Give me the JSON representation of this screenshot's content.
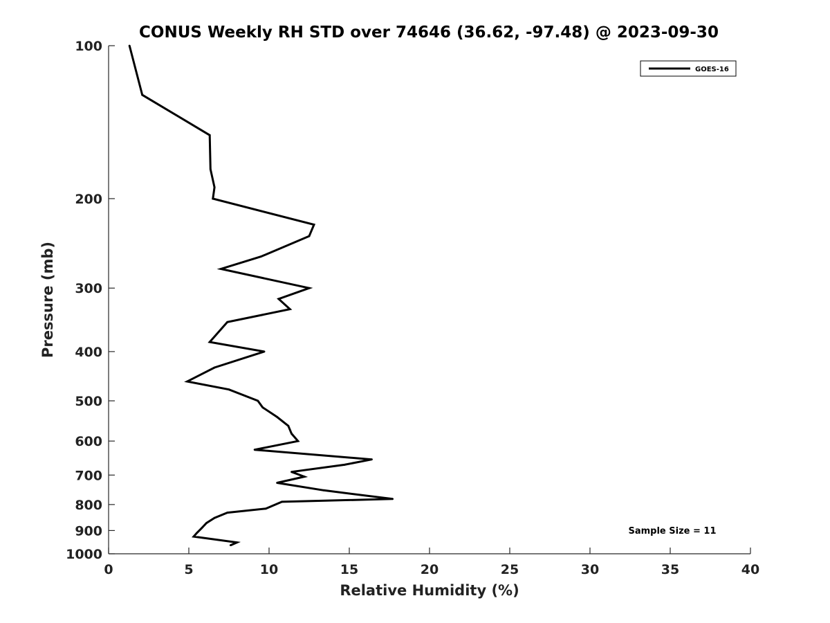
{
  "chart_data": {
    "type": "line",
    "title": "CONUS Weekly RH STD over 74646 (36.62, -97.48) @ 2023-09-30",
    "xlabel": "Relative Humidity (%)",
    "ylabel": "Pressure (mb)",
    "xlim": [
      0,
      40
    ],
    "ylim": [
      100,
      1000
    ],
    "y_scale": "log",
    "y_direction": "reversed",
    "x_ticks": [
      "0",
      "5",
      "10",
      "15",
      "20",
      "25",
      "30",
      "35",
      "40"
    ],
    "y_ticks": [
      "100",
      "200",
      "300",
      "400",
      "500",
      "600",
      "700",
      "800",
      "900",
      "1000"
    ],
    "grid": false,
    "legend": {
      "placement": "top-right",
      "entries": [
        "GOES-16"
      ]
    },
    "annotations": [
      "Sample Size = 11"
    ],
    "series": [
      {
        "name": "GOES-16",
        "color": "#000000",
        "points": [
          [
            1.3,
            100
          ],
          [
            2.1,
            125
          ],
          [
            6.3,
            150
          ],
          [
            6.35,
            175
          ],
          [
            6.6,
            190
          ],
          [
            6.5,
            200
          ],
          [
            12.8,
            225
          ],
          [
            12.5,
            237
          ],
          [
            9.5,
            260
          ],
          [
            7.0,
            275
          ],
          [
            12.5,
            300
          ],
          [
            10.6,
            315
          ],
          [
            11.3,
            330
          ],
          [
            7.4,
            350
          ],
          [
            6.3,
            383
          ],
          [
            9.7,
            400
          ],
          [
            6.6,
            430
          ],
          [
            4.9,
            458
          ],
          [
            7.5,
            475
          ],
          [
            9.3,
            500
          ],
          [
            9.6,
            515
          ],
          [
            10.5,
            538
          ],
          [
            11.2,
            560
          ],
          [
            11.4,
            580
          ],
          [
            11.8,
            600
          ],
          [
            9.1,
            624
          ],
          [
            16.4,
            652
          ],
          [
            14.7,
            668
          ],
          [
            11.4,
            690
          ],
          [
            12.2,
            705
          ],
          [
            10.5,
            725
          ],
          [
            13.4,
            750
          ],
          [
            17.7,
            780
          ],
          [
            10.8,
            790
          ],
          [
            9.8,
            815
          ],
          [
            7.4,
            830
          ],
          [
            6.6,
            850
          ],
          [
            6.1,
            870
          ],
          [
            5.8,
            890
          ],
          [
            5.5,
            910
          ],
          [
            5.3,
            925
          ],
          [
            8.0,
            950
          ],
          [
            7.6,
            962
          ]
        ]
      }
    ]
  }
}
